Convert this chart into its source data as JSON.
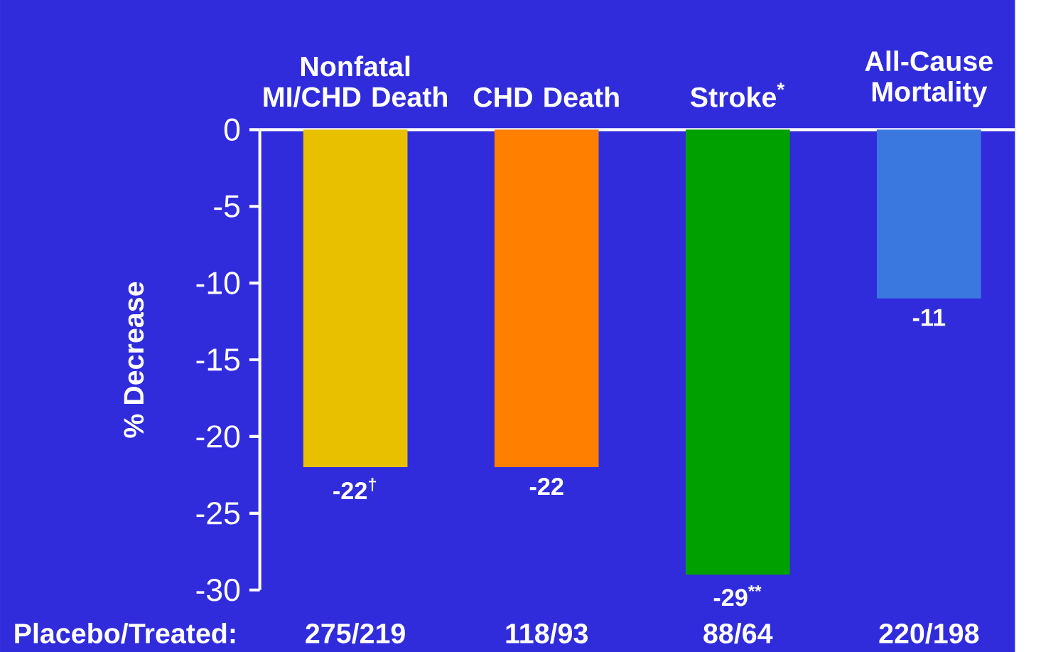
{
  "chart_data": {
    "type": "bar",
    "categories": [
      "Nonfatal MI/CHD Death",
      "CHD Death",
      "Stroke$^{*}$",
      "All-Cause Mortality"
    ],
    "values": [
      -22,
      -22,
      -29,
      -11
    ],
    "value_labels": [
      "-22$^{†}$",
      "-22",
      "-29$^{**}$",
      "-11"
    ],
    "colors": [
      "#e8c000",
      "#ff7f00",
      "#00a000",
      "#3a78e0"
    ],
    "ylim": [
      -30,
      0
    ],
    "yticks": [
      0,
      -5,
      -10,
      -15,
      -20,
      -25,
      -30
    ],
    "ylabel": "% Decrease",
    "annotations": [
      "Placebo/Treated:",
      "275/219",
      "118/93",
      "88/64",
      "220/198"
    ]
  }
}
